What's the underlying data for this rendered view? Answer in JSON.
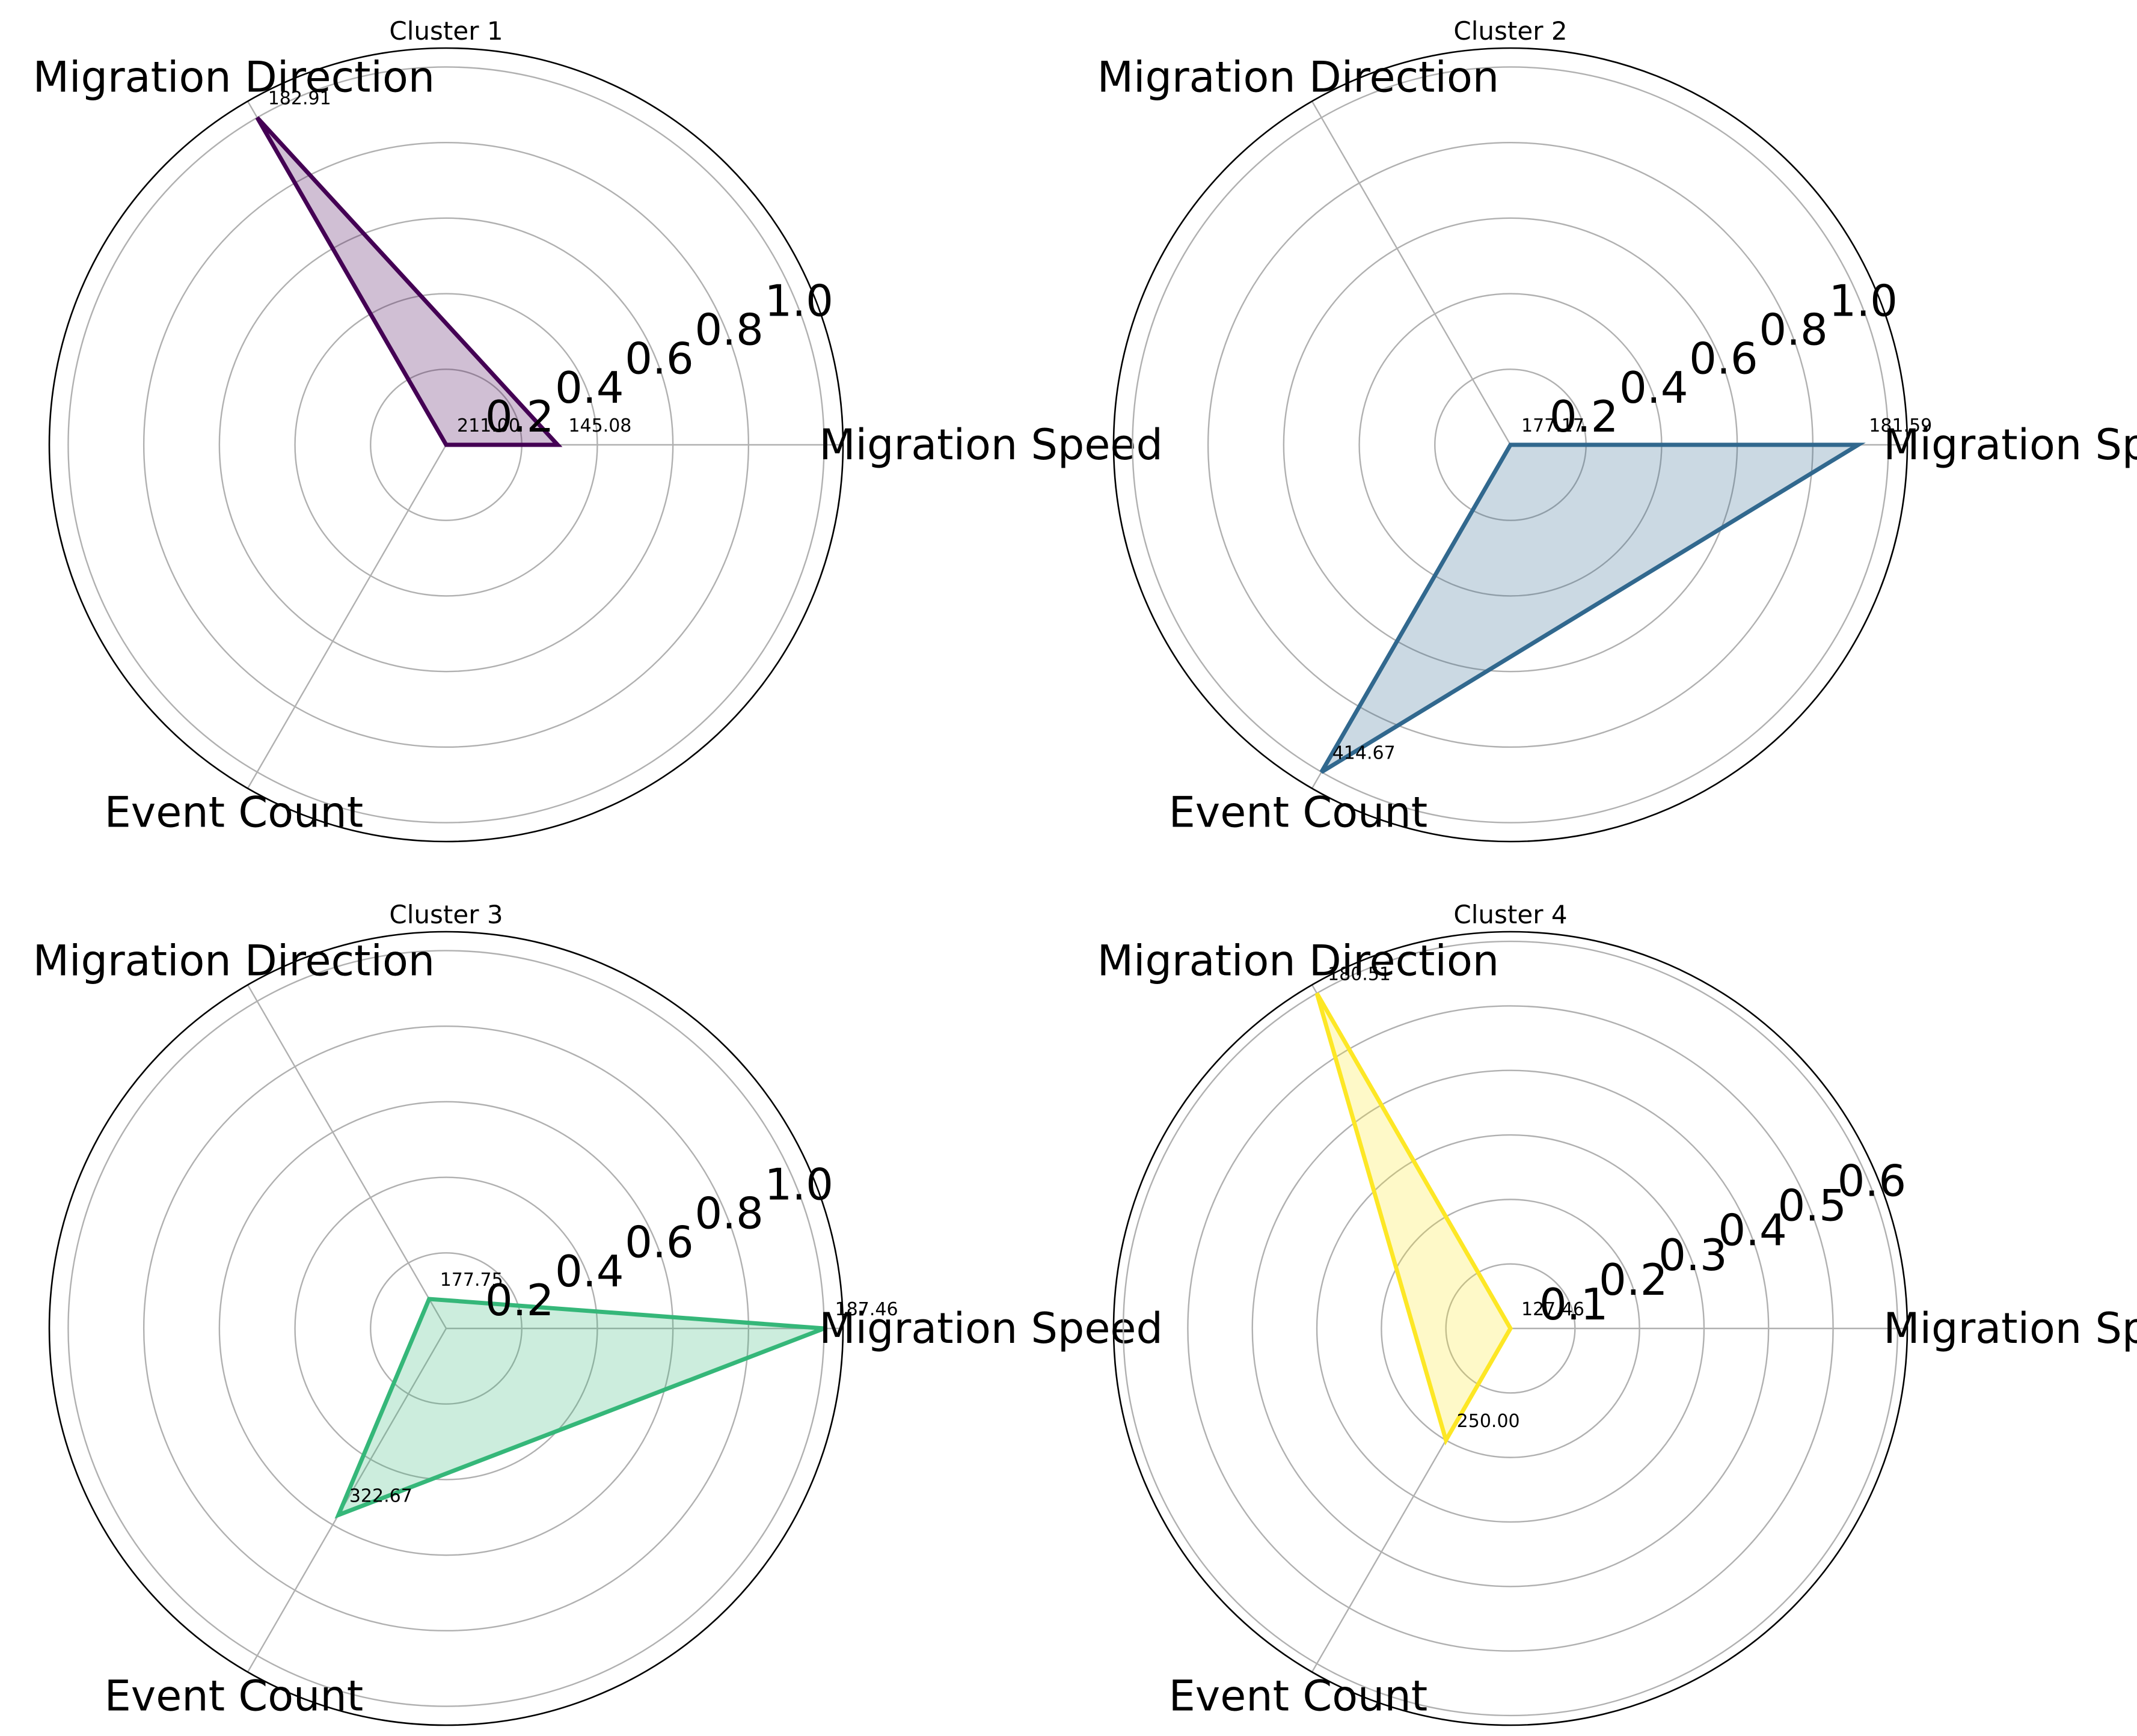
{
  "chart_data": [
    {
      "type": "radar",
      "title": "Cluster 1",
      "axes": [
        "Migration Speed",
        "Migration Direction",
        "Event Count"
      ],
      "rlim": [
        0,
        1.05
      ],
      "rticks": [
        0.2,
        0.4,
        0.6,
        0.8,
        1.0
      ],
      "rtick_labels": [
        "0.2",
        "0.4",
        "0.6",
        "0.8",
        "1.0"
      ],
      "values": [
        0.295,
        1.0,
        0.0
      ],
      "raw_labels": [
        "145.08",
        "182.91",
        "211.00"
      ],
      "color": "#440154",
      "fill_color": "#440154",
      "grid": true
    },
    {
      "type": "radar",
      "title": "Cluster 2",
      "axes": [
        "Migration Speed",
        "Migration Direction",
        "Event Count"
      ],
      "rlim": [
        0,
        1.05
      ],
      "rticks": [
        0.2,
        0.4,
        0.6,
        0.8,
        1.0
      ],
      "rtick_labels": [
        "0.2",
        "0.4",
        "0.6",
        "0.8",
        "1.0"
      ],
      "values": [
        0.92,
        0.0,
        1.0
      ],
      "raw_labels": [
        "181.59",
        "177.17",
        "414.67"
      ],
      "color": "#31688e",
      "fill_color": "#31688e",
      "grid": true
    },
    {
      "type": "radar",
      "title": "Cluster 3",
      "axes": [
        "Migration Speed",
        "Migration Direction",
        "Event Count"
      ],
      "rlim": [
        0,
        1.05
      ],
      "rticks": [
        0.2,
        0.4,
        0.6,
        0.8,
        1.0
      ],
      "rtick_labels": [
        "0.2",
        "0.4",
        "0.6",
        "0.8",
        "1.0"
      ],
      "values": [
        1.0,
        0.09,
        0.57
      ],
      "raw_labels": [
        "187.46",
        "177.75",
        "322.67"
      ],
      "color": "#35b779",
      "fill_color": "#35b779",
      "grid": true
    },
    {
      "type": "radar",
      "title": "Cluster 4",
      "axes": [
        "Migration Speed",
        "Migration Direction",
        "Event Count"
      ],
      "rlim": [
        0,
        0.615
      ],
      "rticks": [
        0.1,
        0.2,
        0.3,
        0.4,
        0.5,
        0.6
      ],
      "rtick_labels": [
        "0.1",
        "0.2",
        "0.3",
        "0.4",
        "0.5",
        "0.6"
      ],
      "values": [
        0.0,
        0.6,
        0.2
      ],
      "raw_labels": [
        "127.46",
        "180.51",
        "250.00"
      ],
      "color": "#fde725",
      "fill_color": "#fde725",
      "grid": true
    }
  ]
}
